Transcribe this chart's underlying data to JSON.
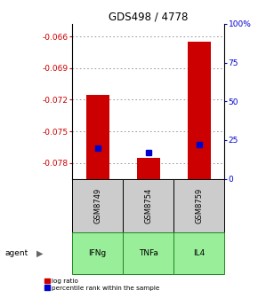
{
  "title": "GDS498 / 4778",
  "samples": [
    "GSM8749",
    "GSM8754",
    "GSM8759"
  ],
  "agents": [
    "IFNg",
    "TNFa",
    "IL4"
  ],
  "log_ratios": [
    -0.0715,
    -0.0775,
    -0.0665
  ],
  "percentile_ranks": [
    20,
    17,
    22
  ],
  "ylim_left": [
    -0.0795,
    -0.0648
  ],
  "ylim_right": [
    0,
    100
  ],
  "left_ticks": [
    -0.066,
    -0.069,
    -0.072,
    -0.075,
    -0.078
  ],
  "right_ticks": [
    0,
    25,
    50,
    75,
    100
  ],
  "right_tick_labels": [
    "0",
    "25",
    "50",
    "75",
    "100%"
  ],
  "bar_color": "#cc0000",
  "percentile_color": "#0000cc",
  "sample_box_color": "#cccccc",
  "agent_box_color": "#99ee99",
  "agent_box_border": "#228822",
  "grid_color": "#888888",
  "title_color": "#000000",
  "left_tick_color": "#cc0000",
  "right_tick_color": "#0000cc",
  "agent_label": "agent"
}
